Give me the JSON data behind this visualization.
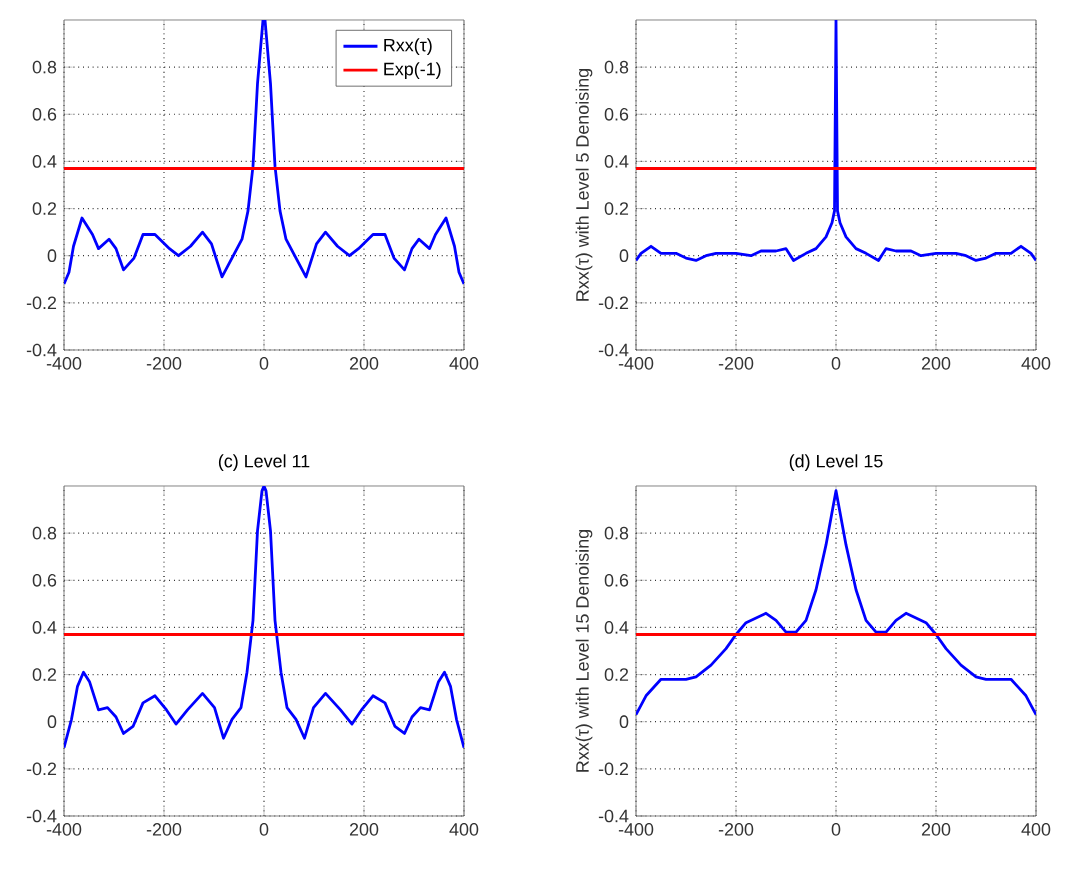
{
  "chart_data": [
    {
      "type": "line",
      "xlim": [
        -400,
        400
      ],
      "ylim": [
        -0.4,
        1
      ],
      "xticks": [
        -400,
        -200,
        0,
        200,
        400
      ],
      "yticks": [
        -0.4,
        -0.2,
        0,
        0.2,
        0.4,
        0.6,
        0.8
      ],
      "grid": true,
      "legend": "top right",
      "x": [
        -400,
        -390,
        -381,
        -364,
        -343,
        -331,
        -310,
        -296,
        -281,
        -260,
        -242,
        -218,
        -189,
        -171,
        -147,
        -123,
        -105,
        -84,
        -64,
        -44,
        -32,
        -22,
        -13,
        -2,
        2,
        13,
        22,
        32,
        44,
        64,
        84,
        105,
        123,
        147,
        171,
        189,
        218,
        242,
        260,
        281,
        296,
        310,
        331,
        343,
        364,
        381,
        390,
        400
      ],
      "series": [
        {
          "name": "Rxx(τ)",
          "color": "#0000ff",
          "values": [
            -0.12,
            -0.07,
            0.04,
            0.16,
            0.09,
            0.03,
            0.07,
            0.03,
            -0.06,
            -0.01,
            0.09,
            0.09,
            0.03,
            0,
            0.04,
            0.1,
            0.05,
            -0.09,
            -0.01,
            0.07,
            0.19,
            0.38,
            0.73,
            1.0,
            1.0,
            0.73,
            0.38,
            0.19,
            0.07,
            -0.01,
            -0.09,
            0.05,
            0.1,
            0.04,
            0,
            0.03,
            0.09,
            0.09,
            -0.01,
            -0.06,
            0.03,
            0.07,
            0.03,
            0.09,
            0.16,
            0.04,
            -0.07,
            -0.12
          ]
        }
      ],
      "ref_lines": [
        {
          "axis": "y",
          "value": 0.37,
          "label": "Exp(-1)",
          "color": "#ff0000"
        }
      ]
    },
    {
      "type": "line",
      "ylabel": "Rxx(τ) with Level 5 Denoising",
      "xlim": [
        -400,
        400
      ],
      "ylim": [
        -0.4,
        1
      ],
      "xticks": [
        -400,
        -200,
        0,
        200,
        400
      ],
      "yticks": [
        -0.4,
        -0.2,
        0,
        0.2,
        0.4,
        0.6,
        0.8
      ],
      "grid": true,
      "x": [
        -400,
        -390,
        -370,
        -350,
        -320,
        -300,
        -280,
        -260,
        -240,
        -200,
        -170,
        -150,
        -120,
        -100,
        -85,
        -60,
        -40,
        -20,
        -8,
        -3,
        0,
        3,
        8,
        20,
        40,
        60,
        85,
        100,
        120,
        150,
        170,
        200,
        240,
        260,
        280,
        300,
        320,
        350,
        370,
        390,
        400
      ],
      "series": [
        {
          "color": "#0000ff",
          "values": [
            -0.02,
            0.01,
            0.04,
            0.01,
            0.01,
            -0.01,
            -0.02,
            0,
            0.01,
            0.01,
            0,
            0.02,
            0.02,
            0.03,
            -0.02,
            0.01,
            0.03,
            0.08,
            0.14,
            0.19,
            1.0,
            0.19,
            0.14,
            0.08,
            0.03,
            0.01,
            -0.02,
            0.03,
            0.02,
            0.02,
            0,
            0.01,
            0.01,
            0,
            -0.02,
            -0.01,
            0.01,
            0.01,
            0.04,
            0.01,
            -0.02
          ]
        }
      ],
      "ref_lines": [
        {
          "axis": "y",
          "value": 0.37,
          "color": "#ff0000"
        }
      ]
    },
    {
      "type": "line",
      "title": "(c) Level 11",
      "xlim": [
        -400,
        400
      ],
      "ylim": [
        -0.4,
        1
      ],
      "xticks": [
        -400,
        -200,
        0,
        200,
        400
      ],
      "yticks": [
        -0.4,
        -0.2,
        0,
        0.2,
        0.4,
        0.6,
        0.8
      ],
      "grid": true,
      "x": [
        -400,
        -385,
        -373,
        -361,
        -349,
        -331,
        -313,
        -296,
        -281,
        -262,
        -242,
        -218,
        -195,
        -176,
        -153,
        -123,
        -99,
        -81,
        -64,
        -46,
        -34,
        -22,
        -13,
        -4,
        0,
        4,
        13,
        22,
        34,
        46,
        64,
        81,
        99,
        123,
        153,
        176,
        195,
        218,
        242,
        262,
        281,
        296,
        313,
        331,
        349,
        361,
        373,
        385,
        400
      ],
      "series": [
        {
          "color": "#0000ff",
          "values": [
            -0.11,
            0.01,
            0.15,
            0.21,
            0.17,
            0.05,
            0.06,
            0.02,
            -0.05,
            -0.02,
            0.08,
            0.11,
            0.05,
            -0.01,
            0.05,
            0.12,
            0.06,
            -0.07,
            0.01,
            0.06,
            0.21,
            0.43,
            0.81,
            0.98,
            1.0,
            0.98,
            0.81,
            0.43,
            0.21,
            0.06,
            0.01,
            -0.07,
            0.06,
            0.12,
            0.05,
            -0.01,
            0.05,
            0.11,
            0.08,
            -0.02,
            -0.05,
            0.02,
            0.06,
            0.05,
            0.17,
            0.21,
            0.15,
            0.01,
            -0.11
          ]
        }
      ],
      "ref_lines": [
        {
          "axis": "y",
          "value": 0.37,
          "color": "#ff0000"
        }
      ]
    },
    {
      "type": "line",
      "title": "(d) Level 15",
      "ylabel": "Rxx(τ) with Level 15 Denoising",
      "xlim": [
        -400,
        400
      ],
      "ylim": [
        -0.4,
        1
      ],
      "xticks": [
        -400,
        -200,
        0,
        200,
        400
      ],
      "yticks": [
        -0.4,
        -0.2,
        0,
        0.2,
        0.4,
        0.6,
        0.8
      ],
      "grid": true,
      "x": [
        -400,
        -380,
        -350,
        -300,
        -280,
        -250,
        -220,
        -200,
        -180,
        -140,
        -120,
        -100,
        -80,
        -60,
        -40,
        -20,
        0,
        20,
        40,
        60,
        80,
        100,
        120,
        140,
        180,
        200,
        220,
        250,
        280,
        300,
        350,
        380,
        400
      ],
      "series": [
        {
          "color": "#0000ff",
          "values": [
            0.03,
            0.11,
            0.18,
            0.18,
            0.19,
            0.24,
            0.31,
            0.37,
            0.42,
            0.46,
            0.43,
            0.38,
            0.38,
            0.43,
            0.56,
            0.75,
            0.98,
            0.75,
            0.56,
            0.43,
            0.38,
            0.38,
            0.43,
            0.46,
            0.42,
            0.37,
            0.31,
            0.24,
            0.19,
            0.18,
            0.18,
            0.11,
            0.03
          ]
        }
      ],
      "ref_lines": [
        {
          "axis": "y",
          "value": 0.37,
          "color": "#ff0000"
        }
      ]
    }
  ]
}
